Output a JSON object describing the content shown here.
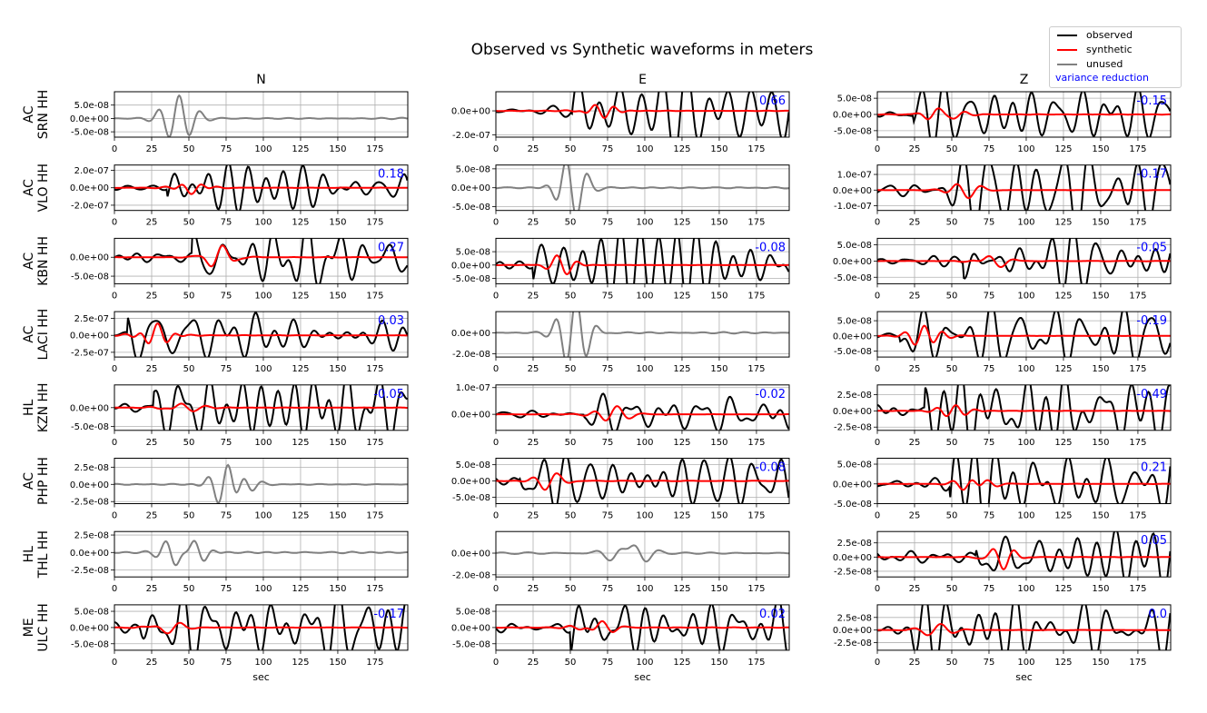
{
  "figure": {
    "title": "Observed vs Synthetic waveforms in meters"
  },
  "legend": {
    "items": [
      {
        "label": "observed",
        "color": "#000000"
      },
      {
        "label": "synthetic",
        "color": "#ff0000"
      },
      {
        "label": "unused",
        "color": "#808080"
      }
    ],
    "vr_label": "variance reduction",
    "vr_color": "#0000ff"
  },
  "chart_data": {
    "type": "line",
    "title": "Observed vs Synthetic waveforms in meters",
    "xlabel": "sec",
    "xlim": [
      0,
      197
    ],
    "xticks": [
      0,
      25,
      50,
      75,
      100,
      125,
      150,
      175
    ],
    "grid": true,
    "columns": [
      "N",
      "E",
      "Z"
    ],
    "rows": [
      {
        "station": [
          "AC",
          "SRN HH"
        ],
        "panels": [
          {
            "status": "unused",
            "vr": "",
            "ylim": [
              -7e-08,
              1e-07
            ],
            "yticks": [
              5e-08,
              0,
              -5e-08
            ],
            "yticklabels": [
              "5.0e-08",
              "0.0e+00",
              "-5.0e-08"
            ]
          },
          {
            "status": "used",
            "vr": "0.66",
            "ylim": [
              -2.2e-07,
              1.6e-07
            ],
            "yticks": [
              0,
              -2e-07
            ],
            "yticklabels": [
              "0.0e+00",
              "-2.0e-07"
            ]
          },
          {
            "status": "used",
            "vr": "-0.15",
            "ylim": [
              -7e-08,
              7e-08
            ],
            "yticks": [
              5e-08,
              0,
              -5e-08
            ],
            "yticklabels": [
              "5.0e-08",
              "0.0e+00",
              "-5.0e-08"
            ]
          }
        ]
      },
      {
        "station": [
          "AC",
          "VLO HH"
        ],
        "panels": [
          {
            "status": "used",
            "vr": "0.18",
            "ylim": [
              -2.6e-07,
              2.6e-07
            ],
            "yticks": [
              2e-07,
              0,
              -2e-07
            ],
            "yticklabels": [
              "2.0e-07",
              "0.0e+00",
              "-2.0e-07"
            ]
          },
          {
            "status": "unused",
            "vr": "",
            "ylim": [
              -6e-08,
              6e-08
            ],
            "yticks": [
              5e-08,
              0,
              -5e-08
            ],
            "yticklabels": [
              "5.0e-08",
              "0.0e+00",
              "-5.0e-08"
            ]
          },
          {
            "status": "used",
            "vr": "-0.17",
            "ylim": [
              -1.3e-07,
              1.6e-07
            ],
            "yticks": [
              1e-07,
              0,
              -1e-07
            ],
            "yticklabels": [
              "1.0e-07",
              "0.0e+00",
              "-1.0e-07"
            ]
          }
        ]
      },
      {
        "station": [
          "AC",
          "KBN HH"
        ],
        "panels": [
          {
            "status": "used",
            "vr": "0.27",
            "ylim": [
              -7e-08,
              5e-08
            ],
            "yticks": [
              0,
              -5e-08
            ],
            "yticklabels": [
              "0.0e+00",
              "-5.0e-08"
            ]
          },
          {
            "status": "used",
            "vr": "-0.08",
            "ylim": [
              -7e-08,
              1e-07
            ],
            "yticks": [
              5e-08,
              0,
              -5e-08
            ],
            "yticklabels": [
              "5.0e-08",
              "0.0e+00",
              "-5.0e-08"
            ]
          },
          {
            "status": "used",
            "vr": "-0.05",
            "ylim": [
              -7e-08,
              7e-08
            ],
            "yticks": [
              5e-08,
              0,
              -5e-08
            ],
            "yticklabels": [
              "5.0e-08",
              "0.0e+00",
              "-5.0e-08"
            ]
          }
        ]
      },
      {
        "station": [
          "AC",
          "LACI HH"
        ],
        "panels": [
          {
            "status": "used",
            "vr": "0.03",
            "ylim": [
              -3.2e-07,
              3.5e-07
            ],
            "yticks": [
              2.5e-07,
              0,
              -2.5e-07
            ],
            "yticklabels": [
              "2.5e-07",
              "0.0e+00",
              "-2.5e-07"
            ]
          },
          {
            "status": "unused",
            "vr": "",
            "ylim": [
              -2.3e-08,
              2e-08
            ],
            "yticks": [
              0,
              -2e-08
            ],
            "yticklabels": [
              "0.0e+00",
              "-2.0e-08"
            ]
          },
          {
            "status": "used",
            "vr": "-0.19",
            "ylim": [
              -7e-08,
              8e-08
            ],
            "yticks": [
              5e-08,
              0,
              -5e-08
            ],
            "yticklabels": [
              "5.0e-08",
              "0.0e+00",
              "-5.0e-08"
            ]
          }
        ]
      },
      {
        "station": [
          "HL",
          "KZN HH"
        ],
        "panels": [
          {
            "status": "used",
            "vr": "-0.05",
            "ylim": [
              -6e-08,
              6e-08
            ],
            "yticks": [
              0,
              -5e-08
            ],
            "yticklabels": [
              "0.0e+00",
              "-5.0e-08"
            ]
          },
          {
            "status": "used",
            "vr": "-0.02",
            "ylim": [
              -6e-08,
              1.1e-07
            ],
            "yticks": [
              1e-07,
              0
            ],
            "yticklabels": [
              "1.0e-07",
              "0.0e+00"
            ]
          },
          {
            "status": "used",
            "vr": "-0.49",
            "ylim": [
              -3e-08,
              4e-08
            ],
            "yticks": [
              2.5e-08,
              0,
              -2.5e-08
            ],
            "yticklabels": [
              "2.5e-08",
              "0.0e+00",
              "-2.5e-08"
            ]
          }
        ]
      },
      {
        "station": [
          "AC",
          "PHP HH"
        ],
        "panels": [
          {
            "status": "unused",
            "vr": "",
            "ylim": [
              -2.8e-08,
              3.8e-08
            ],
            "yticks": [
              2.5e-08,
              0,
              -2.5e-08
            ],
            "yticklabels": [
              "2.5e-08",
              "0.0e+00",
              "-2.5e-08"
            ]
          },
          {
            "status": "used",
            "vr": "-0.08",
            "ylim": [
              -7e-08,
              7e-08
            ],
            "yticks": [
              5e-08,
              0,
              -5e-08
            ],
            "yticklabels": [
              "5.0e-08",
              "0.0e+00",
              "-5.0e-08"
            ]
          },
          {
            "status": "used",
            "vr": "0.21",
            "ylim": [
              -5e-08,
              6.5e-08
            ],
            "yticks": [
              5e-08,
              0,
              -5e-08
            ],
            "yticklabels": [
              "5.0e-08",
              "0.0e+00",
              "-5.0e-08"
            ]
          }
        ]
      },
      {
        "station": [
          "HL",
          "THL HH"
        ],
        "panels": [
          {
            "status": "unused",
            "vr": "",
            "ylim": [
              -3.5e-08,
              3e-08
            ],
            "yticks": [
              2.5e-08,
              0,
              -2.5e-08
            ],
            "yticklabels": [
              "2.5e-08",
              "0.0e+00",
              "-2.5e-08"
            ]
          },
          {
            "status": "unused",
            "vr": "",
            "ylim": [
              -2.2e-08,
              2e-08
            ],
            "yticks": [
              0,
              -2e-08
            ],
            "yticklabels": [
              "0.0e+00",
              "-2.0e-08"
            ]
          },
          {
            "status": "used",
            "vr": "0.05",
            "ylim": [
              -3.5e-08,
              4.5e-08
            ],
            "yticks": [
              2.5e-08,
              0,
              -2.5e-08
            ],
            "yticklabels": [
              "2.5e-08",
              "0.0e+00",
              "-2.5e-08"
            ]
          }
        ]
      },
      {
        "station": [
          "ME",
          "ULC HH"
        ],
        "panels": [
          {
            "status": "used",
            "vr": "-0.17",
            "ylim": [
              -7e-08,
              7e-08
            ],
            "yticks": [
              5e-08,
              0,
              -5e-08
            ],
            "yticklabels": [
              "5.0e-08",
              "0.0e+00",
              "-5.0e-08"
            ]
          },
          {
            "status": "used",
            "vr": "0.02",
            "ylim": [
              -7e-08,
              7e-08
            ],
            "yticks": [
              5e-08,
              0,
              -5e-08
            ],
            "yticklabels": [
              "5.0e-08",
              "0.0e+00",
              "-5.0e-08"
            ]
          },
          {
            "status": "used",
            "vr": "0.0",
            "ylim": [
              -4e-08,
              5e-08
            ],
            "yticks": [
              2.5e-08,
              0,
              -2.5e-08
            ],
            "yticklabels": [
              "2.5e-08",
              "0.0e+00",
              "-2.5e-08"
            ]
          }
        ]
      }
    ]
  }
}
